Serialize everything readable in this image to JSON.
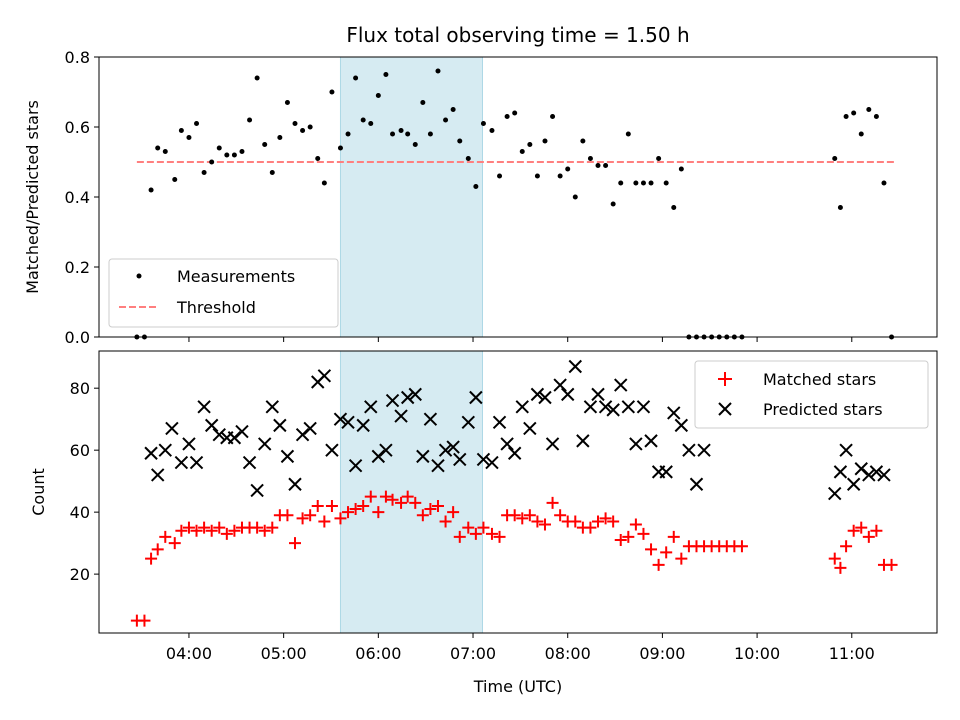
{
  "chart_data": {
    "type": "scatter",
    "title": "Flux total observing time = 1.50 h",
    "xlabel": "Time (UTC)",
    "x_tick_labels": [
      "04:00",
      "05:00",
      "06:00",
      "07:00",
      "08:00",
      "09:00",
      "10:00",
      "11:00"
    ],
    "x_tick_values": [
      4,
      5,
      6,
      7,
      8,
      9,
      10,
      11
    ],
    "xlim": [
      3.05,
      11.9
    ],
    "highlight_span": [
      5.6,
      7.1
    ],
    "colors": {
      "highlight": "#add8e6",
      "matched": "#ff0000",
      "predicted": "#000000",
      "measure": "#000000",
      "threshold": "#ff7f7f"
    },
    "top": {
      "ylabel": "Matched/Predicted stars",
      "ylim": [
        0,
        0.8
      ],
      "y_tick_labels": [
        "0.0",
        "0.2",
        "0.4",
        "0.6",
        "0.8"
      ],
      "y_tick_values": [
        0,
        0.2,
        0.4,
        0.6,
        0.8
      ],
      "legend_position": "lower-left",
      "threshold": {
        "name": "Threshold",
        "value": 0.5,
        "x_range": [
          3.45,
          11.45
        ]
      },
      "measurements": {
        "name": "Measurements",
        "x": [
          3.45,
          3.53,
          3.6,
          3.67,
          3.75,
          3.85,
          3.92,
          4.0,
          4.08,
          4.16,
          4.24,
          4.32,
          4.4,
          4.48,
          4.56,
          4.64,
          4.72,
          4.8,
          4.88,
          4.96,
          5.04,
          5.12,
          5.2,
          5.28,
          5.36,
          5.43,
          5.51,
          5.6,
          5.68,
          5.76,
          5.84,
          5.92,
          6.0,
          6.08,
          6.15,
          6.24,
          6.31,
          6.39,
          6.47,
          6.55,
          6.63,
          6.71,
          6.79,
          6.86,
          6.95,
          7.03,
          7.11,
          7.2,
          7.28,
          7.36,
          7.44,
          7.52,
          7.6,
          7.68,
          7.76,
          7.84,
          7.92,
          8.0,
          8.08,
          8.16,
          8.24,
          8.32,
          8.4,
          8.48,
          8.56,
          8.64,
          8.72,
          8.8,
          8.88,
          8.96,
          9.04,
          9.12,
          9.2,
          9.28,
          9.36,
          9.44,
          9.52,
          9.6,
          9.68,
          9.76,
          9.84,
          10.82,
          10.88,
          10.94,
          11.02,
          11.1,
          11.18,
          11.26,
          11.34,
          11.42
        ],
        "y": [
          0.0,
          0.0,
          0.42,
          0.54,
          0.53,
          0.45,
          0.59,
          0.57,
          0.61,
          0.47,
          0.5,
          0.54,
          0.52,
          0.52,
          0.53,
          0.62,
          0.74,
          0.55,
          0.47,
          0.57,
          0.67,
          0.61,
          0.59,
          0.6,
          0.51,
          0.44,
          0.7,
          0.54,
          0.58,
          0.74,
          0.62,
          0.61,
          0.69,
          0.75,
          0.58,
          0.59,
          0.58,
          0.55,
          0.67,
          0.58,
          0.76,
          0.62,
          0.65,
          0.56,
          0.51,
          0.43,
          0.61,
          0.59,
          0.46,
          0.63,
          0.64,
          0.53,
          0.55,
          0.46,
          0.56,
          0.63,
          0.46,
          0.48,
          0.4,
          0.56,
          0.51,
          0.49,
          0.49,
          0.38,
          0.44,
          0.58,
          0.44,
          0.44,
          0.44,
          0.51,
          0.44,
          0.37,
          0.48,
          0.0,
          0.0,
          0.0,
          0.0,
          0.0,
          0.0,
          0.0,
          0.0,
          0.51,
          0.37,
          0.63,
          0.64,
          0.58,
          0.65,
          0.63,
          0.44,
          0.0
        ]
      }
    },
    "bottom": {
      "ylabel": "Count",
      "ylim": [
        1,
        92
      ],
      "y_tick_labels": [
        "20",
        "40",
        "60",
        "80"
      ],
      "y_tick_values": [
        20,
        40,
        60,
        80
      ],
      "legend_position": "upper-right",
      "series": [
        {
          "name": "Matched stars",
          "marker": "+",
          "x": [
            3.45,
            3.53,
            3.6,
            3.67,
            3.75,
            3.85,
            3.92,
            4.0,
            4.08,
            4.16,
            4.24,
            4.32,
            4.4,
            4.48,
            4.56,
            4.64,
            4.72,
            4.8,
            4.88,
            4.96,
            5.04,
            5.12,
            5.2,
            5.28,
            5.36,
            5.43,
            5.51,
            5.6,
            5.68,
            5.76,
            5.84,
            5.92,
            6.0,
            6.08,
            6.15,
            6.24,
            6.31,
            6.39,
            6.47,
            6.55,
            6.63,
            6.71,
            6.79,
            6.86,
            6.95,
            7.03,
            7.11,
            7.2,
            7.28,
            7.36,
            7.44,
            7.52,
            7.6,
            7.68,
            7.76,
            7.84,
            7.92,
            8.0,
            8.08,
            8.16,
            8.24,
            8.32,
            8.4,
            8.48,
            8.56,
            8.64,
            8.72,
            8.8,
            8.88,
            8.96,
            9.04,
            9.12,
            9.2,
            9.28,
            9.36,
            9.44,
            9.52,
            9.6,
            9.68,
            9.76,
            9.84,
            10.82,
            10.88,
            10.94,
            11.02,
            11.1,
            11.18,
            11.26,
            11.34,
            11.42
          ],
          "y": [
            5,
            5,
            25,
            28,
            32,
            30,
            34,
            35,
            34,
            35,
            34,
            35,
            33,
            34,
            35,
            35,
            35,
            34,
            35,
            39,
            39,
            30,
            38,
            39,
            42,
            37,
            42,
            38,
            40,
            41,
            42,
            45,
            40,
            45,
            44,
            43,
            45,
            43,
            39,
            41,
            42,
            37,
            40,
            32,
            35,
            33,
            35,
            33,
            32,
            39,
            39,
            38,
            39,
            37,
            36,
            43,
            39,
            37,
            37,
            35,
            35,
            37,
            38,
            37,
            31,
            32,
            36,
            33,
            28,
            23,
            27,
            32,
            25,
            29,
            29,
            29,
            29,
            29,
            29,
            29,
            29,
            25,
            22,
            29,
            34,
            35,
            32,
            34,
            23,
            23
          ]
        },
        {
          "name": "Predicted stars",
          "marker": "x",
          "x": [
            3.6,
            3.67,
            3.75,
            3.82,
            3.92,
            4.0,
            4.08,
            4.16,
            4.24,
            4.32,
            4.4,
            4.48,
            4.56,
            4.64,
            4.72,
            4.8,
            4.88,
            4.96,
            5.04,
            5.12,
            5.2,
            5.28,
            5.36,
            5.43,
            5.51,
            5.6,
            5.68,
            5.76,
            5.84,
            5.92,
            6.0,
            6.08,
            6.15,
            6.24,
            6.31,
            6.39,
            6.47,
            6.55,
            6.63,
            6.71,
            6.79,
            6.86,
            6.95,
            7.03,
            7.11,
            7.2,
            7.28,
            7.36,
            7.44,
            7.52,
            7.6,
            7.68,
            7.76,
            7.84,
            7.92,
            8.0,
            8.08,
            8.16,
            8.24,
            8.32,
            8.4,
            8.48,
            8.56,
            8.64,
            8.72,
            8.8,
            8.88,
            8.96,
            9.04,
            9.12,
            9.2,
            9.28,
            9.36,
            9.44,
            10.82,
            10.88,
            10.94,
            11.02,
            11.1,
            11.18,
            11.26,
            11.34
          ],
          "y": [
            59,
            52,
            60,
            67,
            56,
            62,
            56,
            74,
            68,
            65,
            64,
            64,
            66,
            56,
            47,
            62,
            74,
            68,
            58,
            49,
            65,
            67,
            82,
            84,
            60,
            70,
            69,
            55,
            68,
            74,
            58,
            60,
            76,
            71,
            77,
            78,
            58,
            70,
            55,
            60,
            61,
            57,
            69,
            77,
            57,
            56,
            69,
            62,
            59,
            74,
            67,
            78,
            77,
            62,
            81,
            78,
            87,
            63,
            74,
            78,
            74,
            73,
            81,
            74,
            62,
            74,
            63,
            53,
            53,
            72,
            68,
            60,
            49,
            60,
            46,
            53,
            60,
            49,
            54,
            52,
            53,
            52
          ]
        }
      ]
    }
  }
}
